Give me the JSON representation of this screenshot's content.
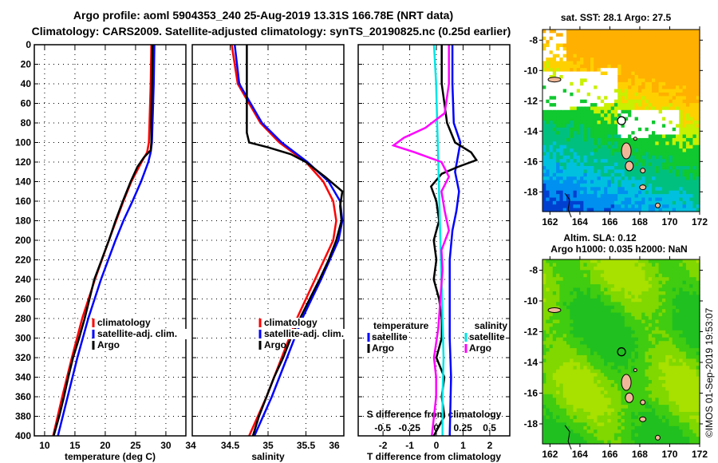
{
  "title": {
    "line1": "Argo profile: aoml 5904353_240 25-Aug-2019 13.31S 166.78E (NRT data)",
    "line2": "Climatology: CARS2009. Satellite-adjusted climatology: synTS_20190825.nc (0.25d earlier)"
  },
  "chart_data": [
    {
      "type": "line",
      "id": "temperature",
      "xlabel": "temperature (deg C)",
      "ylabel": "",
      "xlim": [
        8.3,
        33.3
      ],
      "ylim": [
        400,
        0
      ],
      "xticks": [
        "10",
        "15",
        "20",
        "25",
        "30"
      ],
      "yticks": [
        "0",
        "20",
        "40",
        "60",
        "80",
        "100",
        "120",
        "140",
        "160",
        "180",
        "200",
        "220",
        "240",
        "260",
        "280",
        "300",
        "320",
        "340",
        "360",
        "380",
        "400"
      ],
      "grid": true,
      "legend": [
        "climatology",
        "satellite-adj. clim.",
        "Argo"
      ],
      "legend_position": "lower-right",
      "series": [
        {
          "name": "climatology",
          "color": "#ff0000",
          "depth": [
            0,
            40,
            80,
            100,
            110,
            120,
            140,
            160,
            180,
            200,
            240,
            280,
            320,
            360,
            400
          ],
          "values": [
            27.6,
            27.5,
            27.3,
            27.2,
            26.9,
            26.0,
            24.3,
            23.0,
            21.8,
            20.6,
            18.3,
            16.2,
            14.5,
            12.9,
            11.4
          ]
        },
        {
          "name": "satellite-adj. clim.",
          "color": "#0000ff",
          "depth": [
            0,
            40,
            80,
            100,
            110,
            120,
            140,
            160,
            180,
            200,
            240,
            280,
            320,
            360,
            400
          ],
          "values": [
            28.1,
            28.0,
            27.8,
            27.7,
            27.5,
            27.1,
            25.9,
            24.5,
            23.0,
            21.7,
            19.3,
            17.2,
            15.4,
            13.8,
            12.2
          ]
        },
        {
          "name": "Argo",
          "color": "#000000",
          "depth": [
            0,
            40,
            80,
            100,
            108,
            115,
            125,
            140,
            160,
            180,
            200,
            220,
            240,
            260,
            280,
            300,
            320,
            340,
            360,
            380,
            400
          ],
          "values": [
            27.8,
            27.7,
            27.6,
            27.6,
            27.5,
            26.4,
            25.3,
            24.2,
            22.9,
            21.7,
            20.6,
            19.4,
            18.2,
            17.4,
            16.6,
            15.7,
            14.7,
            13.9,
            13.2,
            12.4,
            11.5
          ]
        }
      ]
    },
    {
      "type": "line",
      "id": "salinity",
      "xlabel": "salinity",
      "xlim": [
        34.0,
        36.0
      ],
      "ylim": [
        400,
        0
      ],
      "xticks": [
        "34",
        "34.5",
        "35",
        "35.5",
        "36"
      ],
      "grid": true,
      "legend": [
        "climatology",
        "satellite-adj. clim.",
        "Argo"
      ],
      "legend_position": "lower-center",
      "series": [
        {
          "name": "climatology",
          "color": "#ff0000",
          "depth": [
            0,
            40,
            80,
            100,
            120,
            140,
            160,
            180,
            200,
            240,
            280,
            320,
            360,
            400
          ],
          "values": [
            34.52,
            34.6,
            34.9,
            35.15,
            35.5,
            35.73,
            35.86,
            35.9,
            35.86,
            35.62,
            35.38,
            35.18,
            34.98,
            34.75
          ]
        },
        {
          "name": "satellite-adj. clim.",
          "color": "#0000ff",
          "depth": [
            0,
            40,
            80,
            100,
            120,
            140,
            160,
            180,
            200,
            240,
            280,
            320,
            360,
            400
          ],
          "values": [
            34.56,
            34.62,
            34.92,
            35.18,
            35.52,
            35.8,
            35.95,
            35.98,
            35.93,
            35.7,
            35.45,
            35.25,
            35.05,
            34.82
          ]
        },
        {
          "name": "Argo",
          "color": "#000000",
          "depth": [
            0,
            60,
            90,
            100,
            105,
            112,
            120,
            135,
            150,
            165,
            180,
            200,
            220,
            240,
            260,
            280,
            300,
            320,
            340,
            360,
            380,
            400
          ],
          "values": [
            34.72,
            34.72,
            34.72,
            34.75,
            35.0,
            35.3,
            35.5,
            35.75,
            35.98,
            35.95,
            35.97,
            35.9,
            35.8,
            35.68,
            35.55,
            35.42,
            35.3,
            35.2,
            35.08,
            34.98,
            34.88,
            34.8
          ]
        }
      ]
    },
    {
      "type": "line",
      "id": "difference",
      "xlabel": "T difference from climatology",
      "x2label": "S difference from climatology",
      "xlim": [
        -2.93,
        2.75
      ],
      "x2lim": [
        -0.73,
        0.69
      ],
      "ylim": [
        400,
        0
      ],
      "xticks": [
        "-2",
        "-1",
        "0",
        "1",
        "2"
      ],
      "x2ticks": [
        "-0.5",
        "-0.25",
        "0",
        "0.25",
        "0.5"
      ],
      "grid": true,
      "legend_temperature": {
        "heading": "temperature",
        "items": [
          "satellite",
          "Argo"
        ]
      },
      "legend_salinity": {
        "heading": "salinity",
        "items": [
          "satellite",
          "Argo"
        ]
      },
      "series": [
        {
          "name": "temperature satellite",
          "axis": "T",
          "color": "#0000ff",
          "depth": [
            0,
            40,
            80,
            100,
            115,
            130,
            150,
            170,
            190,
            220,
            260,
            300,
            340,
            400
          ],
          "values": [
            0.6,
            0.6,
            0.65,
            0.9,
            0.8,
            0.7,
            0.85,
            0.75,
            0.6,
            0.5,
            0.5,
            0.5,
            0.55,
            0.5
          ]
        },
        {
          "name": "temperature Argo",
          "axis": "T",
          "color": "#000000",
          "depth": [
            0,
            40,
            80,
            100,
            110,
            118,
            125,
            132,
            145,
            160,
            180,
            200,
            220,
            240,
            260,
            280,
            300,
            320,
            340,
            360,
            380,
            400
          ],
          "values": [
            0.2,
            0.2,
            0.4,
            0.7,
            1.3,
            1.5,
            0.8,
            0.2,
            -0.2,
            0.0,
            0.1,
            -0.1,
            0.0,
            -0.1,
            0.1,
            0.2,
            0.2,
            0.0,
            0.3,
            0.2,
            0.3,
            -0.1
          ]
        },
        {
          "name": "salinity satellite",
          "axis": "S",
          "color": "#00e5e5",
          "depth": [
            0,
            40,
            80,
            120,
            160,
            200,
            240,
            280,
            320,
            360,
            400
          ],
          "values": [
            -0.02,
            0.0,
            0.01,
            0.02,
            0.03,
            0.04,
            0.05,
            0.06,
            0.07,
            0.06,
            0.06
          ]
        },
        {
          "name": "salinity Argo",
          "axis": "S",
          "color": "#ff00ff",
          "depth": [
            0,
            40,
            70,
            85,
            95,
            103,
            110,
            120,
            135,
            150,
            170,
            190,
            210,
            230,
            260,
            290,
            320,
            340,
            360,
            380,
            400
          ],
          "values": [
            0.12,
            0.12,
            0.08,
            -0.1,
            -0.3,
            -0.4,
            -0.2,
            0.05,
            0.12,
            0.05,
            0.08,
            0.12,
            0.05,
            0.06,
            0.04,
            0.02,
            -0.02,
            0.0,
            0.0,
            -0.02,
            -0.04
          ]
        }
      ]
    }
  ],
  "maps": {
    "sst": {
      "title": "sat. SST: 28.1 Argo: 27.5",
      "lat_ticks": [
        "-8",
        "-10",
        "-12",
        "-14",
        "-16",
        "-18"
      ],
      "lon_ticks": [
        "162",
        "164",
        "166",
        "168",
        "170",
        "172"
      ]
    },
    "sla": {
      "title1": "Altim. SLA: 0.12",
      "title2": "Argo h1000: 0.035 h2000: NaN",
      "lat_ticks": [
        "-8",
        "-10",
        "-12",
        "-14",
        "-16",
        "-18"
      ],
      "lon_ticks": [
        "162",
        "164",
        "166",
        "168",
        "170",
        "172"
      ]
    }
  },
  "footer": {
    "stamp": "©IMOS 01-Sep-2019 19:53:07"
  }
}
